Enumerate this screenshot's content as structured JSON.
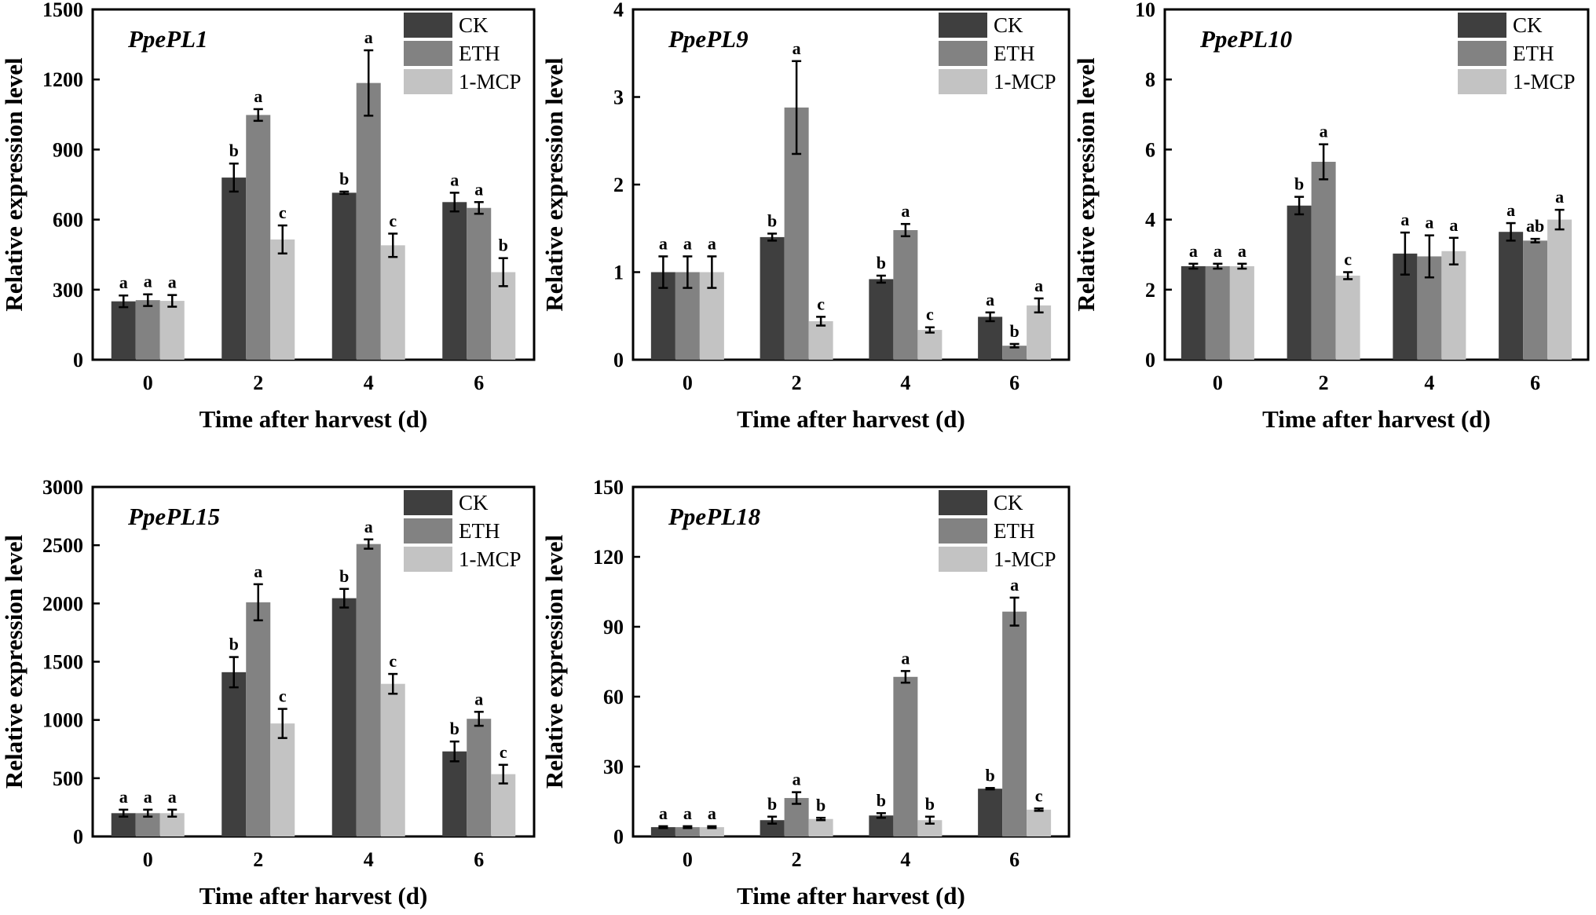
{
  "figure": {
    "colors": {
      "CK": "#3f3f3f",
      "ETH": "#828282",
      "1-MCP": "#c3c3c3",
      "axis": "#000000"
    }
  },
  "chart_data": [
    {
      "type": "bar",
      "title": "PpePL1",
      "xlabel": "Time after harvest (d)",
      "ylabel": "Relative expression level",
      "categories": [
        "0",
        "2",
        "4",
        "6"
      ],
      "ylim": [
        0,
        1500
      ],
      "yticks": [
        0,
        300,
        600,
        900,
        1200,
        1500
      ],
      "legend": [
        "CK",
        "ETH",
        "1-MCP"
      ],
      "legend_position": "top-right",
      "series": [
        {
          "name": "CK",
          "values": [
            250,
            780,
            715,
            675
          ],
          "errors": [
            25,
            60,
            5,
            40
          ],
          "labels": [
            "a",
            "b",
            "b",
            "a"
          ]
        },
        {
          "name": "ETH",
          "values": [
            255,
            1048,
            1185,
            650
          ],
          "errors": [
            25,
            25,
            140,
            25
          ],
          "labels": [
            "a",
            "a",
            "a",
            "a"
          ]
        },
        {
          "name": "1-MCP",
          "values": [
            252,
            515,
            490,
            375
          ],
          "errors": [
            25,
            60,
            50,
            60
          ],
          "labels": [
            "a",
            "c",
            "c",
            "b"
          ]
        }
      ]
    },
    {
      "type": "bar",
      "title": "PpePL9",
      "xlabel": "Time after harvest (d)",
      "ylabel": "Relative expression level",
      "categories": [
        "0",
        "2",
        "4",
        "6"
      ],
      "ylim": [
        0,
        4
      ],
      "yticks": [
        0,
        1,
        2,
        3,
        4
      ],
      "legend": [
        "CK",
        "ETH",
        "1-MCP"
      ],
      "legend_position": "top-right",
      "series": [
        {
          "name": "CK",
          "values": [
            1.0,
            1.4,
            0.92,
            0.49
          ],
          "errors": [
            0.18,
            0.04,
            0.04,
            0.05
          ],
          "labels": [
            "a",
            "b",
            "b",
            "a"
          ]
        },
        {
          "name": "ETH",
          "values": [
            1.0,
            2.88,
            1.48,
            0.16
          ],
          "errors": [
            0.18,
            0.53,
            0.07,
            0.02
          ],
          "labels": [
            "a",
            "a",
            "a",
            "b"
          ]
        },
        {
          "name": "1-MCP",
          "values": [
            1.0,
            0.44,
            0.34,
            0.62
          ],
          "errors": [
            0.18,
            0.05,
            0.03,
            0.08
          ],
          "labels": [
            "a",
            "c",
            "c",
            "a"
          ]
        }
      ]
    },
    {
      "type": "bar",
      "title": "PpePL10",
      "xlabel": "Time after harvest (d)",
      "ylabel": "Relative expression level",
      "categories": [
        "0",
        "2",
        "4",
        "6"
      ],
      "ylim": [
        0,
        10
      ],
      "yticks": [
        0,
        2,
        4,
        6,
        8,
        10
      ],
      "legend": [
        "CK",
        "ETH",
        "1-MCP"
      ],
      "legend_position": "top-right",
      "series": [
        {
          "name": "CK",
          "values": [
            2.67,
            4.4,
            3.03,
            3.65
          ],
          "errors": [
            0.07,
            0.25,
            0.6,
            0.25
          ],
          "labels": [
            "a",
            "b",
            "a",
            "a"
          ]
        },
        {
          "name": "ETH",
          "values": [
            2.67,
            5.65,
            2.95,
            3.4
          ],
          "errors": [
            0.07,
            0.5,
            0.6,
            0.05
          ],
          "labels": [
            "a",
            "a",
            "a",
            "ab"
          ]
        },
        {
          "name": "1-MCP",
          "values": [
            2.67,
            2.4,
            3.1,
            4.0
          ],
          "errors": [
            0.07,
            0.1,
            0.38,
            0.28
          ],
          "labels": [
            "a",
            "c",
            "a",
            "a"
          ]
        }
      ]
    },
    {
      "type": "bar",
      "title": "PpePL15",
      "xlabel": "Time after harvest (d)",
      "ylabel": "Relative expression level",
      "categories": [
        "0",
        "2",
        "4",
        "6"
      ],
      "ylim": [
        0,
        3000
      ],
      "yticks": [
        0,
        500,
        1000,
        1500,
        2000,
        2500,
        3000
      ],
      "legend": [
        "CK",
        "ETH",
        "1-MCP"
      ],
      "legend_position": "top-right",
      "series": [
        {
          "name": "CK",
          "values": [
            200,
            1410,
            2045,
            730
          ],
          "errors": [
            30,
            130,
            80,
            85
          ],
          "labels": [
            "a",
            "b",
            "b",
            "b"
          ]
        },
        {
          "name": "ETH",
          "values": [
            200,
            2010,
            2510,
            1010
          ],
          "errors": [
            30,
            155,
            40,
            60
          ],
          "labels": [
            "a",
            "a",
            "a",
            "a"
          ]
        },
        {
          "name": "1-MCP",
          "values": [
            200,
            970,
            1310,
            535
          ],
          "errors": [
            30,
            125,
            85,
            80
          ],
          "labels": [
            "a",
            "c",
            "c",
            "c"
          ]
        }
      ]
    },
    {
      "type": "bar",
      "title": "PpePL18",
      "xlabel": "Time after harvest (d)",
      "ylabel": "Relative expression level",
      "categories": [
        "0",
        "2",
        "4",
        "6"
      ],
      "ylim": [
        0,
        150
      ],
      "yticks": [
        0,
        30,
        60,
        90,
        120,
        150
      ],
      "legend": [
        "CK",
        "ETH",
        "1-MCP"
      ],
      "legend_position": "top-right",
      "series": [
        {
          "name": "CK",
          "values": [
            4.0,
            7.0,
            9.0,
            20.5
          ],
          "errors": [
            0.4,
            1.5,
            1.0,
            0.3
          ],
          "labels": [
            "a",
            "b",
            "b",
            "b"
          ]
        },
        {
          "name": "ETH",
          "values": [
            4.0,
            16.5,
            68.5,
            96.5
          ],
          "errors": [
            0.4,
            2.5,
            2.5,
            6.0
          ],
          "labels": [
            "a",
            "a",
            "a",
            "a"
          ]
        },
        {
          "name": "1-MCP",
          "values": [
            4.0,
            7.5,
            7.0,
            11.5
          ],
          "errors": [
            0.4,
            0.5,
            1.5,
            0.5
          ],
          "labels": [
            "a",
            "b",
            "b",
            "c"
          ]
        }
      ]
    }
  ]
}
